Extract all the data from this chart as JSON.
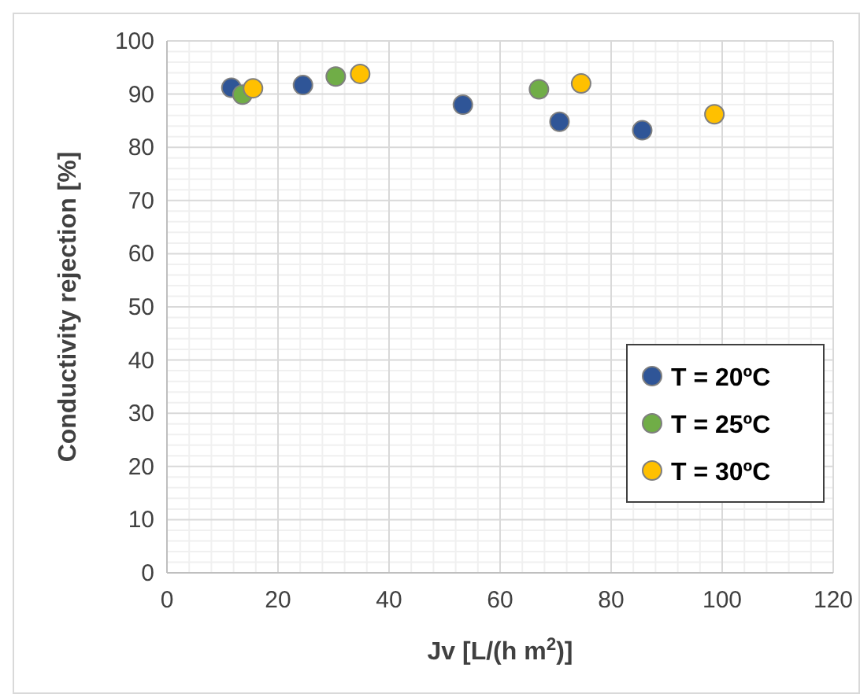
{
  "chart_data": {
    "type": "scatter",
    "xlabel": "Jv [L/(h m$^{2}$)]",
    "ylabel": "Conductivity rejection  [%]",
    "xlim": [
      0,
      120
    ],
    "xticks": [
      0,
      20,
      40,
      60,
      80,
      100,
      120
    ],
    "ylim": [
      0,
      100
    ],
    "yticks": [
      0,
      10,
      20,
      30,
      40,
      50,
      60,
      70,
      80,
      90,
      100
    ],
    "grid": true,
    "legend": "bottom right",
    "marker": "circle",
    "series": [
      {
        "name": "T = 20ºC",
        "color": "#2f5597",
        "x": [
          11.6,
          24.5,
          53.3,
          70.7,
          85.6
        ],
        "values": [
          91.2,
          91.7,
          88.0,
          84.8,
          83.2
        ]
      },
      {
        "name": "T = 25ºC",
        "color": "#70ad47",
        "x": [
          13.6,
          30.4,
          67.0
        ],
        "values": [
          89.9,
          93.3,
          90.9
        ]
      },
      {
        "name": "T = 30ºC",
        "color": "#ffc000",
        "x": [
          15.5,
          34.8,
          74.6,
          98.6
        ],
        "values": [
          91.1,
          93.8,
          92.0,
          86.2
        ]
      }
    ]
  }
}
